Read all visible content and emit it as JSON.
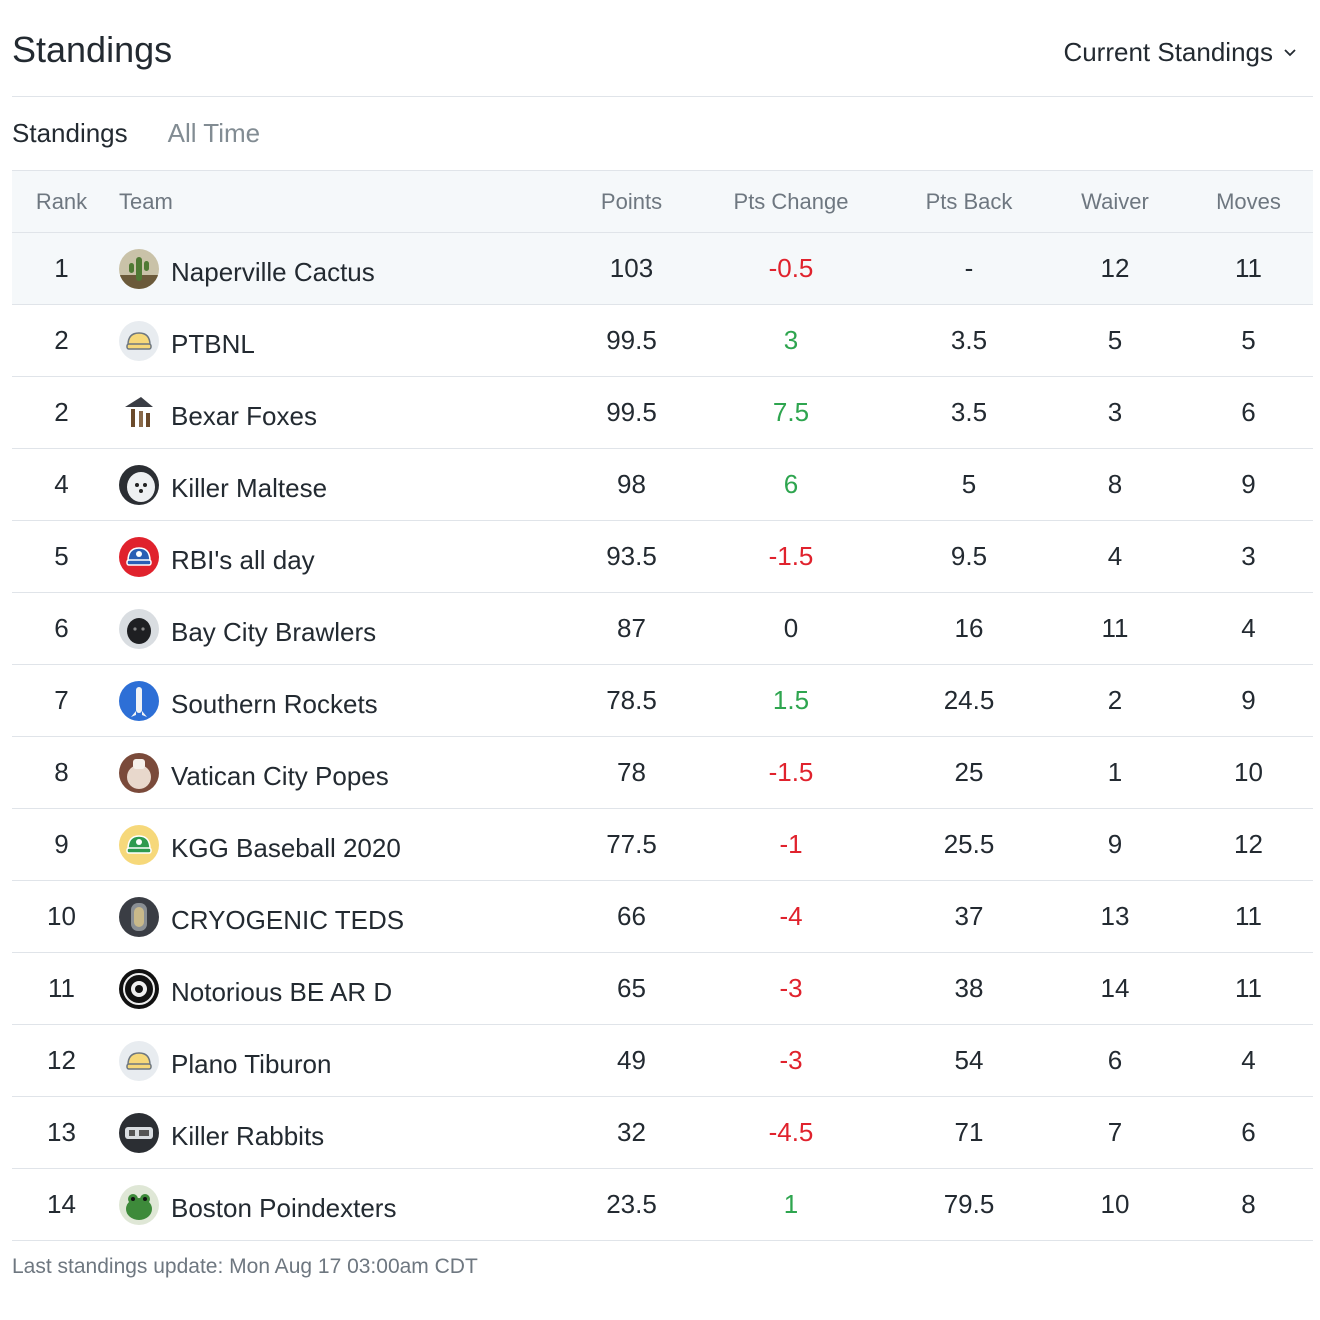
{
  "header": {
    "title": "Standings",
    "dropdown_label": "Current Standings"
  },
  "tabs": [
    {
      "label": "Standings",
      "active": true
    },
    {
      "label": "All Time",
      "active": false
    }
  ],
  "columns": {
    "rank": "Rank",
    "team": "Team",
    "points": "Points",
    "pts_change": "Pts Change",
    "pts_back": "Pts Back",
    "waiver": "Waiver",
    "moves": "Moves"
  },
  "rows": [
    {
      "rank": "1",
      "team": "Naperville Cactus",
      "avatar": "cactus-avatar",
      "points": "103",
      "pts_change": "-0.5",
      "pts_back": "-",
      "waiver": "12",
      "moves": "11"
    },
    {
      "rank": "2",
      "team": "PTBNL",
      "avatar": "yellow-cap-avatar",
      "points": "99.5",
      "pts_change": "3",
      "pts_back": "3.5",
      "waiver": "5",
      "moves": "5"
    },
    {
      "rank": "2",
      "team": "Bexar Foxes",
      "avatar": "foxes-avatar",
      "points": "99.5",
      "pts_change": "7.5",
      "pts_back": "3.5",
      "waiver": "3",
      "moves": "6"
    },
    {
      "rank": "4",
      "team": "Killer Maltese",
      "avatar": "maltese-dog-avatar",
      "points": "98",
      "pts_change": "6",
      "pts_back": "5",
      "waiver": "8",
      "moves": "9"
    },
    {
      "rank": "5",
      "team": "RBI's all day",
      "avatar": "red-cap-avatar",
      "points": "93.5",
      "pts_change": "-1.5",
      "pts_back": "9.5",
      "waiver": "4",
      "moves": "3"
    },
    {
      "rank": "6",
      "team": "Bay City Brawlers",
      "avatar": "black-dog-avatar",
      "points": "87",
      "pts_change": "0",
      "pts_back": "16",
      "waiver": "11",
      "moves": "4"
    },
    {
      "rank": "7",
      "team": "Southern Rockets",
      "avatar": "rocket-avatar",
      "points": "78.5",
      "pts_change": "1.5",
      "pts_back": "24.5",
      "waiver": "2",
      "moves": "9"
    },
    {
      "rank": "8",
      "team": "Vatican City Popes",
      "avatar": "popes-avatar",
      "points": "78",
      "pts_change": "-1.5",
      "pts_back": "25",
      "waiver": "1",
      "moves": "10"
    },
    {
      "rank": "9",
      "team": "KGG Baseball 2020",
      "avatar": "green-cap-avatar",
      "points": "77.5",
      "pts_change": "-1",
      "pts_back": "25.5",
      "waiver": "9",
      "moves": "12"
    },
    {
      "rank": "10",
      "team": "CRYOGENIC TEDS",
      "avatar": "cryo-tube-avatar",
      "points": "66",
      "pts_change": "-4",
      "pts_back": "37",
      "waiver": "13",
      "moves": "11"
    },
    {
      "rank": "11",
      "team": "Notorious BE AR D",
      "avatar": "notorious-badge-avatar",
      "points": "65",
      "pts_change": "-3",
      "pts_back": "38",
      "waiver": "14",
      "moves": "11"
    },
    {
      "rank": "12",
      "team": "Plano Tiburon",
      "avatar": "yellow-cap-avatar",
      "points": "49",
      "pts_change": "-3",
      "pts_back": "54",
      "waiver": "6",
      "moves": "4"
    },
    {
      "rank": "13",
      "team": "Killer Rabbits",
      "avatar": "rabbits-avatar",
      "points": "32",
      "pts_change": "-4.5",
      "pts_back": "71",
      "waiver": "7",
      "moves": "6"
    },
    {
      "rank": "14",
      "team": "Boston Poindexters",
      "avatar": "frog-avatar",
      "points": "23.5",
      "pts_change": "1",
      "pts_back": "79.5",
      "waiver": "10",
      "moves": "8"
    }
  ],
  "footer": {
    "last_update": "Last standings update: Mon Aug 17 03:00am CDT"
  },
  "colors": {
    "positive": "#2ea54f",
    "negative": "#e0222d",
    "header_bg": "#f5f8fa",
    "divider": "#e0e4e9"
  }
}
